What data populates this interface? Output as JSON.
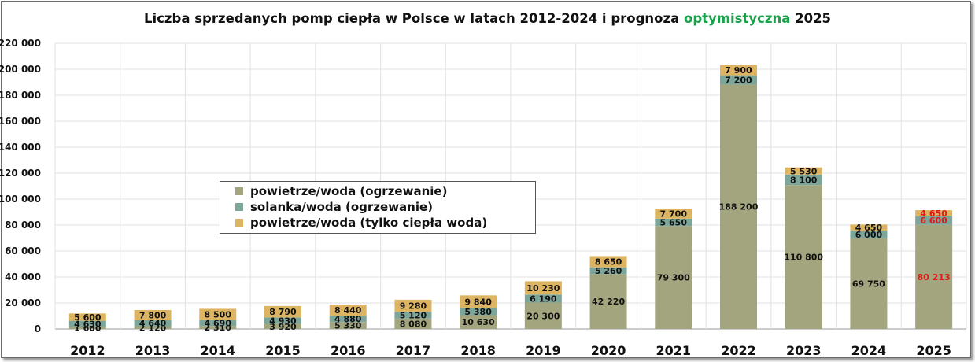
{
  "title": {
    "part1": "Liczba sprzedanych pomp ciepła w Polsce w latach 2012-2024 i  prognoza ",
    "highlight": "optymistyczna",
    "part2": " 2025"
  },
  "colors": {
    "air_water": "#a3a57e",
    "brine_water": "#7da69b",
    "hot_water": "#ddb461",
    "forecast_label": "#e01818",
    "highlight": "#1aa14a"
  },
  "chart_data": {
    "type": "bar",
    "stacked": true,
    "title": "Liczba sprzedanych pomp ciepła w Polsce w latach 2012-2024 i  prognoza optymistyczna 2025",
    "categories": [
      "2012",
      "2013",
      "2014",
      "2015",
      "2016",
      "2017",
      "2018",
      "2019",
      "2020",
      "2021",
      "2022",
      "2023",
      "2024",
      "2025"
    ],
    "series": [
      {
        "name": "powietrze/woda (ogrzewanie)",
        "values": [
          1680,
          2120,
          2310,
          3920,
          5330,
          8080,
          10630,
          20300,
          42220,
          79300,
          188200,
          110800,
          69750,
          80213
        ],
        "labels": [
          "1 680",
          "2 120",
          "2 310",
          "3 920",
          "5 330",
          "8 080",
          "10 630",
          "20 300",
          "42 220",
          "79 300",
          "188 200",
          "110 800",
          "69 750",
          "80 213"
        ]
      },
      {
        "name": "solanka/woda (ogrzewanie)",
        "values": [
          4630,
          4640,
          4690,
          4930,
          4880,
          5120,
          5380,
          6190,
          5260,
          5650,
          7200,
          8100,
          6000,
          6600
        ],
        "labels": [
          "4 630",
          "4 640",
          "4 690",
          "4 930",
          "4 880",
          "5 120",
          "5 380",
          "6 190",
          "5 260",
          "5 650",
          "7 200",
          "8 100",
          "6 000",
          "6 600"
        ]
      },
      {
        "name": "powietrze/woda (tylko ciepła woda)",
        "values": [
          5600,
          7800,
          8500,
          8790,
          8440,
          9280,
          9840,
          10230,
          8650,
          7700,
          7900,
          5530,
          4650,
          4650
        ],
        "labels": [
          "5 600",
          "7 800",
          "8 500",
          "8 790",
          "8 440",
          "9 280",
          "9 840",
          "10 230",
          "8 650",
          "7 700",
          "7 900",
          "5 530",
          "4 650",
          "4 650"
        ]
      }
    ],
    "ylim": [
      0,
      220000
    ],
    "yticks": [
      "0",
      "20 000",
      "40 000",
      "60 000",
      "80 000",
      "100 000",
      "120 000",
      "140 000",
      "160 000",
      "180 000",
      "200 000",
      "220 000"
    ],
    "grid": true,
    "legend_position": "center-left",
    "forecast_category": "2025"
  }
}
